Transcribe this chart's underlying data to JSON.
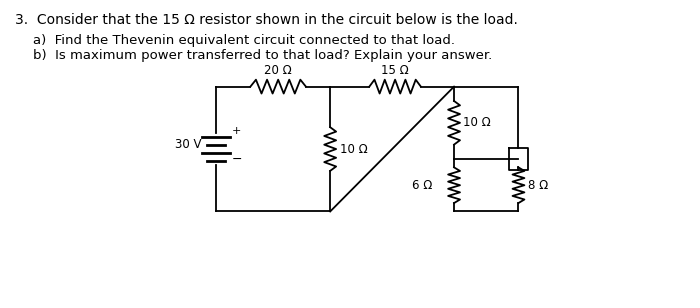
{
  "title_text": "3.  Consider that the 15 Ω resistor shown in the circuit below is the load.",
  "sub_a": "a)  Find the Thevenin equivalent circuit connected to that load.",
  "sub_b": "b)  Is maximum power transferred to that load? Explain your answer.",
  "R20": "20 Ω",
  "R10_mid": "10 Ω",
  "R15": "15 Ω",
  "R10_right": "10 Ω",
  "R6": "6 Ω",
  "R8": "8 Ω",
  "source_label": "30 V",
  "line_color": "#000000",
  "background_color": "#ffffff",
  "font_size_title": 10,
  "font_size_sub": 9.5,
  "font_size_labels": 8.5
}
